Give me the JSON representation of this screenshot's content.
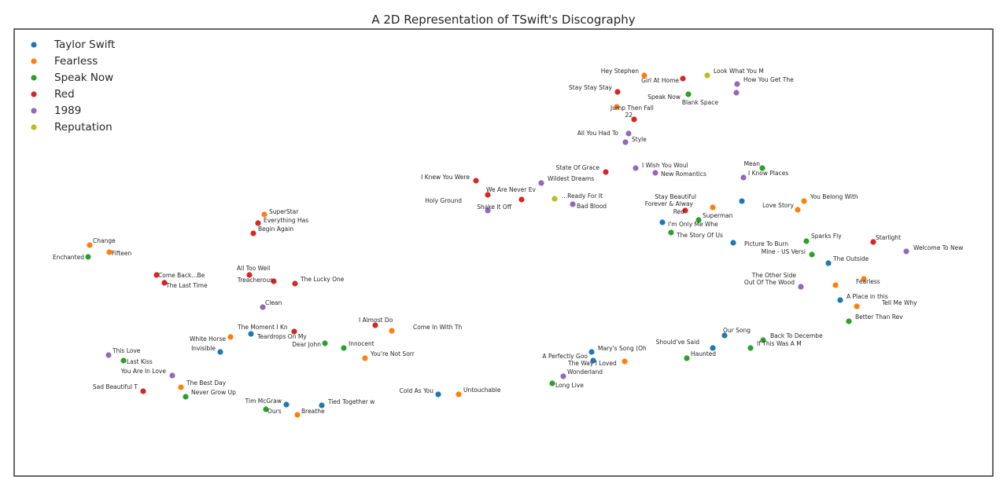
{
  "chart_data": {
    "type": "scatter",
    "title": "A 2D Representation of TSwift's Discography",
    "xlabel": "",
    "ylabel": "",
    "xlim": [
      18,
      1262
    ],
    "ylim": [
      606,
      37
    ],
    "grid": false,
    "legend_position": "top-left",
    "series": [
      {
        "name": "Taylor Swift",
        "color": "#1f77b4",
        "points": [
          {
            "label": "Invisible",
            "x": 280,
            "y": 448
          },
          {
            "label": "The Moment I Kn",
            "x": 319,
            "y": 425
          },
          {
            "label": "Tim McGraw",
            "x": 364,
            "y": 515
          },
          {
            "label": "Tied Together w",
            "x": 409,
            "y": 516
          },
          {
            "label": "Cold As You",
            "x": 557,
            "y": 502
          },
          {
            "label": "Mary's Song (Oh",
            "x": 752,
            "y": 448
          },
          {
            "label": "The Way I Loved",
            "x": 754,
            "y": 459
          },
          {
            "label": "I'm Only Me Whe",
            "x": 842,
            "y": 283
          },
          {
            "label": "Should've Said",
            "x": 906,
            "y": 443
          },
          {
            "label": "Our Song",
            "x": 921,
            "y": 427
          },
          {
            "label": "Picture To Burn",
            "x": 932,
            "y": 309
          },
          {
            "label": "Stay Beautiful",
            "x": 943,
            "y": 256
          },
          {
            "label": "The Outside",
            "x": 1053,
            "y": 335
          },
          {
            "label": "A Place in this",
            "x": 1068,
            "y": 382
          }
        ]
      },
      {
        "name": "Fearless",
        "color": "#ff7f0e",
        "points": [
          {
            "label": "Change",
            "x": 114,
            "y": 312
          },
          {
            "label": "Fifteen",
            "x": 139,
            "y": 321
          },
          {
            "label": "SuperStar",
            "x": 336,
            "y": 273
          },
          {
            "label": "White Horse",
            "x": 293,
            "y": 429
          },
          {
            "label": "The Best Day",
            "x": 230,
            "y": 493
          },
          {
            "label": "Breathe",
            "x": 378,
            "y": 528
          },
          {
            "label": "You're Not Sorr",
            "x": 464,
            "y": 456
          },
          {
            "label": "Come In With Th",
            "x": 498,
            "y": 421
          },
          {
            "label": "Untouchable",
            "x": 583,
            "y": 502
          },
          {
            "label": "Hey Stephen",
            "x": 819,
            "y": 96
          },
          {
            "label": "Jump Then Fall",
            "x": 784,
            "y": 136
          },
          {
            "label": "A Perfectly Goo",
            "x": 794,
            "y": 460
          },
          {
            "label": "Forever & Alway",
            "x": 906,
            "y": 264
          },
          {
            "label": "You Belong With",
            "x": 1022,
            "y": 256
          },
          {
            "label": "Love Story",
            "x": 1014,
            "y": 267
          },
          {
            "label": "The Other Side",
            "x": 1062,
            "y": 363
          },
          {
            "label": "Fearless",
            "x": 1098,
            "y": 355
          },
          {
            "label": "Tell Me Why",
            "x": 1089,
            "y": 390
          }
        ]
      },
      {
        "name": "Speak Now",
        "color": "#2ca02c",
        "points": [
          {
            "label": "Enchanted",
            "x": 112,
            "y": 327
          },
          {
            "label": "Last Kiss",
            "x": 157,
            "y": 459
          },
          {
            "label": "Never Grow Up",
            "x": 236,
            "y": 505
          },
          {
            "label": "Ours",
            "x": 338,
            "y": 521
          },
          {
            "label": "Dear John",
            "x": 413,
            "y": 437
          },
          {
            "label": "Innocent",
            "x": 437,
            "y": 443
          },
          {
            "label": "Long Live",
            "x": 702,
            "y": 488
          },
          {
            "label": "Speak Now",
            "x": 875,
            "y": 120
          },
          {
            "label": "The Story Of Us",
            "x": 853,
            "y": 296
          },
          {
            "label": "Superman",
            "x": 888,
            "y": 280
          },
          {
            "label": "Haunted",
            "x": 873,
            "y": 456
          },
          {
            "label": "Mean",
            "x": 969,
            "y": 214
          },
          {
            "label": "Sparks Fly",
            "x": 1025,
            "y": 307
          },
          {
            "label": "Mine - US Versi",
            "x": 1032,
            "y": 324
          },
          {
            "label": "Back To Decembe",
            "x": 970,
            "y": 433
          },
          {
            "label": "If This Was A M",
            "x": 954,
            "y": 443
          },
          {
            "label": "Better Than Rev",
            "x": 1079,
            "y": 409
          }
        ]
      },
      {
        "name": "Red",
        "color": "#d62728",
        "points": [
          {
            "label": "Come Back...Be",
            "x": 199,
            "y": 350
          },
          {
            "label": "The Last Time",
            "x": 209,
            "y": 360
          },
          {
            "label": "Everything Has",
            "x": 328,
            "y": 284
          },
          {
            "label": "Begin Again",
            "x": 322,
            "y": 297
          },
          {
            "label": "All Too Well",
            "x": 317,
            "y": 350
          },
          {
            "label": "Treacherous",
            "x": 348,
            "y": 358
          },
          {
            "label": "The Lucky One",
            "x": 375,
            "y": 361
          },
          {
            "label": "Teardrops On My",
            "x": 374,
            "y": 422
          },
          {
            "label": "I Almost Do",
            "x": 477,
            "y": 414
          },
          {
            "label": "Sad Beautiful T",
            "x": 182,
            "y": 498
          },
          {
            "label": "I Knew You Were",
            "x": 605,
            "y": 230
          },
          {
            "label": "We Are Never Ev",
            "x": 620,
            "y": 248
          },
          {
            "label": "Shake It Off",
            "x": 663,
            "y": 254
          },
          {
            "label": "Stay Stay Stay",
            "x": 785,
            "y": 117
          },
          {
            "label": "22",
            "x": 806,
            "y": 152
          },
          {
            "label": "Girl At Home",
            "x": 868,
            "y": 100
          },
          {
            "label": "State Of Grace",
            "x": 770,
            "y": 219
          },
          {
            "label": "Red",
            "x": 871,
            "y": 268
          },
          {
            "label": "Starlight",
            "x": 1110,
            "y": 308
          }
        ]
      },
      {
        "name": "1989",
        "color": "#9467bd",
        "points": [
          {
            "label": "This Love",
            "x": 138,
            "y": 452
          },
          {
            "label": "You Are In Love",
            "x": 219,
            "y": 478
          },
          {
            "label": "Clean",
            "x": 334,
            "y": 391
          },
          {
            "label": "Holy Ground",
            "x": 620,
            "y": 268
          },
          {
            "label": "Wildest Dreams",
            "x": 688,
            "y": 233
          },
          {
            "label": "Bad Blood",
            "x": 728,
            "y": 260
          },
          {
            "label": "Wonderland",
            "x": 716,
            "y": 479
          },
          {
            "label": "All You Had To",
            "x": 799,
            "y": 170
          },
          {
            "label": "Style",
            "x": 795,
            "y": 181
          },
          {
            "label": "I Wish You Woul",
            "x": 808,
            "y": 214
          },
          {
            "label": "New Romantics",
            "x": 833,
            "y": 220
          },
          {
            "label": "How You Get The",
            "x": 937,
            "y": 107
          },
          {
            "label": "Blank Space",
            "x": 936,
            "y": 118
          },
          {
            "label": "I Know Places",
            "x": 945,
            "y": 226
          },
          {
            "label": "Out Of The Wood",
            "x": 1018,
            "y": 365
          },
          {
            "label": "Welcome To New",
            "x": 1152,
            "y": 320
          }
        ]
      },
      {
        "name": "Reputation",
        "color": "#bcbd22",
        "points": [
          {
            "label": "Look What You M",
            "x": 899,
            "y": 96
          },
          {
            "label": "...Ready For It",
            "x": 705,
            "y": 253
          }
        ]
      }
    ]
  }
}
